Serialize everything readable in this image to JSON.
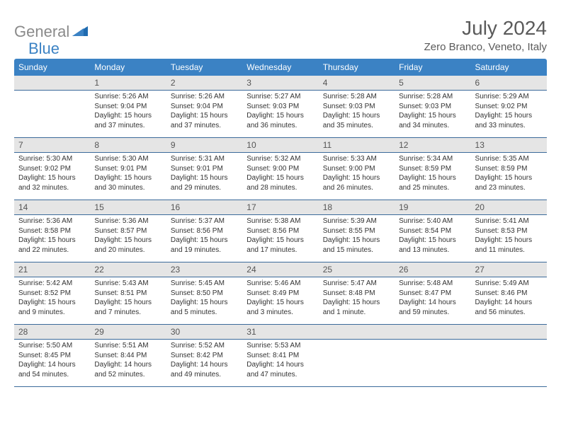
{
  "brand": {
    "part1": "General",
    "part2": "Blue"
  },
  "title": "July 2024",
  "location": "Zero Branco, Veneto, Italy",
  "header_bg": "#3b82c4",
  "daynum_bg": "#e5e5e5",
  "border_color": "#3b6a9a",
  "days_of_week": [
    "Sunday",
    "Monday",
    "Tuesday",
    "Wednesday",
    "Thursday",
    "Friday",
    "Saturday"
  ],
  "weeks": [
    [
      {
        "n": "",
        "sunrise": "",
        "sunset": "",
        "daylight": ""
      },
      {
        "n": "1",
        "sunrise": "5:26 AM",
        "sunset": "9:04 PM",
        "daylight": "15 hours and 37 minutes."
      },
      {
        "n": "2",
        "sunrise": "5:26 AM",
        "sunset": "9:04 PM",
        "daylight": "15 hours and 37 minutes."
      },
      {
        "n": "3",
        "sunrise": "5:27 AM",
        "sunset": "9:03 PM",
        "daylight": "15 hours and 36 minutes."
      },
      {
        "n": "4",
        "sunrise": "5:28 AM",
        "sunset": "9:03 PM",
        "daylight": "15 hours and 35 minutes."
      },
      {
        "n": "5",
        "sunrise": "5:28 AM",
        "sunset": "9:03 PM",
        "daylight": "15 hours and 34 minutes."
      },
      {
        "n": "6",
        "sunrise": "5:29 AM",
        "sunset": "9:02 PM",
        "daylight": "15 hours and 33 minutes."
      }
    ],
    [
      {
        "n": "7",
        "sunrise": "5:30 AM",
        "sunset": "9:02 PM",
        "daylight": "15 hours and 32 minutes."
      },
      {
        "n": "8",
        "sunrise": "5:30 AM",
        "sunset": "9:01 PM",
        "daylight": "15 hours and 30 minutes."
      },
      {
        "n": "9",
        "sunrise": "5:31 AM",
        "sunset": "9:01 PM",
        "daylight": "15 hours and 29 minutes."
      },
      {
        "n": "10",
        "sunrise": "5:32 AM",
        "sunset": "9:00 PM",
        "daylight": "15 hours and 28 minutes."
      },
      {
        "n": "11",
        "sunrise": "5:33 AM",
        "sunset": "9:00 PM",
        "daylight": "15 hours and 26 minutes."
      },
      {
        "n": "12",
        "sunrise": "5:34 AM",
        "sunset": "8:59 PM",
        "daylight": "15 hours and 25 minutes."
      },
      {
        "n": "13",
        "sunrise": "5:35 AM",
        "sunset": "8:59 PM",
        "daylight": "15 hours and 23 minutes."
      }
    ],
    [
      {
        "n": "14",
        "sunrise": "5:36 AM",
        "sunset": "8:58 PM",
        "daylight": "15 hours and 22 minutes."
      },
      {
        "n": "15",
        "sunrise": "5:36 AM",
        "sunset": "8:57 PM",
        "daylight": "15 hours and 20 minutes."
      },
      {
        "n": "16",
        "sunrise": "5:37 AM",
        "sunset": "8:56 PM",
        "daylight": "15 hours and 19 minutes."
      },
      {
        "n": "17",
        "sunrise": "5:38 AM",
        "sunset": "8:56 PM",
        "daylight": "15 hours and 17 minutes."
      },
      {
        "n": "18",
        "sunrise": "5:39 AM",
        "sunset": "8:55 PM",
        "daylight": "15 hours and 15 minutes."
      },
      {
        "n": "19",
        "sunrise": "5:40 AM",
        "sunset": "8:54 PM",
        "daylight": "15 hours and 13 minutes."
      },
      {
        "n": "20",
        "sunrise": "5:41 AM",
        "sunset": "8:53 PM",
        "daylight": "15 hours and 11 minutes."
      }
    ],
    [
      {
        "n": "21",
        "sunrise": "5:42 AM",
        "sunset": "8:52 PM",
        "daylight": "15 hours and 9 minutes."
      },
      {
        "n": "22",
        "sunrise": "5:43 AM",
        "sunset": "8:51 PM",
        "daylight": "15 hours and 7 minutes."
      },
      {
        "n": "23",
        "sunrise": "5:45 AM",
        "sunset": "8:50 PM",
        "daylight": "15 hours and 5 minutes."
      },
      {
        "n": "24",
        "sunrise": "5:46 AM",
        "sunset": "8:49 PM",
        "daylight": "15 hours and 3 minutes."
      },
      {
        "n": "25",
        "sunrise": "5:47 AM",
        "sunset": "8:48 PM",
        "daylight": "15 hours and 1 minute."
      },
      {
        "n": "26",
        "sunrise": "5:48 AM",
        "sunset": "8:47 PM",
        "daylight": "14 hours and 59 minutes."
      },
      {
        "n": "27",
        "sunrise": "5:49 AM",
        "sunset": "8:46 PM",
        "daylight": "14 hours and 56 minutes."
      }
    ],
    [
      {
        "n": "28",
        "sunrise": "5:50 AM",
        "sunset": "8:45 PM",
        "daylight": "14 hours and 54 minutes."
      },
      {
        "n": "29",
        "sunrise": "5:51 AM",
        "sunset": "8:44 PM",
        "daylight": "14 hours and 52 minutes."
      },
      {
        "n": "30",
        "sunrise": "5:52 AM",
        "sunset": "8:42 PM",
        "daylight": "14 hours and 49 minutes."
      },
      {
        "n": "31",
        "sunrise": "5:53 AM",
        "sunset": "8:41 PM",
        "daylight": "14 hours and 47 minutes."
      },
      {
        "n": "",
        "sunrise": "",
        "sunset": "",
        "daylight": ""
      },
      {
        "n": "",
        "sunrise": "",
        "sunset": "",
        "daylight": ""
      },
      {
        "n": "",
        "sunrise": "",
        "sunset": "",
        "daylight": ""
      }
    ]
  ],
  "labels": {
    "sunrise": "Sunrise:",
    "sunset": "Sunset:",
    "daylight": "Daylight:"
  }
}
